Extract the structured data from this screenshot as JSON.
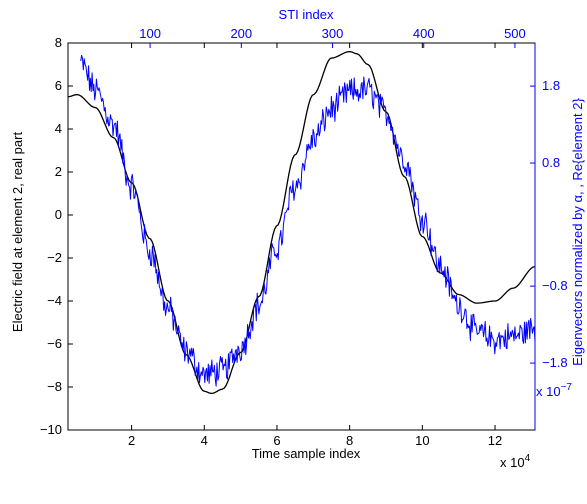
{
  "chart_data": {
    "type": "line",
    "xlabel": "Time sample index",
    "x_exponent_label": "x 10",
    "x_exponent_power": "4",
    "xlim": [
      0.25,
      13.1
    ],
    "xticks": [
      2,
      4,
      6,
      8,
      10,
      12
    ],
    "xtick_labels": [
      "2",
      "4",
      "6",
      "8",
      "10",
      "12"
    ],
    "ylabel": "Electric field at element 2, real part",
    "ylim": [
      -10,
      8
    ],
    "yticks": [
      8,
      6,
      4,
      2,
      0,
      -2,
      -4,
      -6,
      -8,
      -10
    ],
    "ytick_labels": [
      "8",
      "6",
      "4",
      "2",
      "0",
      "−2",
      "−4",
      "−6",
      "−8",
      "−10"
    ],
    "top_xlabel": "STI index",
    "top_xlim": [
      10,
      522
    ],
    "top_xticks": [
      100,
      200,
      300,
      400,
      500
    ],
    "top_xtick_labels": [
      "100",
      "200",
      "300",
      "400",
      "500"
    ],
    "right_ylabel": "Eigenvectors normalized by α, , Re{element 2}",
    "right_exponent_label": "x 10",
    "right_exponent_power": "−7",
    "right_ylim": [
      -2.67,
      2.36
    ],
    "right_yticks": [
      1.8,
      0.8,
      -0.8,
      -1.8
    ],
    "right_ytick_labels": [
      "1.8",
      "0.8",
      "−0.8",
      "−1.8"
    ],
    "colors": {
      "field": "#000000",
      "eigen": "#0000ff",
      "axis": "#000000",
      "right_axis": "#0000ff"
    },
    "series": [
      {
        "axis": "left",
        "color": "#000000",
        "x": [
          0.25,
          0.5,
          1.0,
          1.5,
          2.0,
          2.5,
          3.0,
          3.5,
          4.0,
          4.2,
          4.5,
          5.0,
          5.5,
          6.0,
          6.5,
          7.0,
          7.5,
          8.0,
          8.2,
          8.5,
          9.0,
          9.5,
          10.0,
          10.5,
          11.0,
          11.5,
          12.0,
          12.5,
          13.1
        ],
        "values": [
          5.5,
          5.6,
          5.0,
          3.6,
          1.5,
          -1.1,
          -4.0,
          -6.5,
          -8.2,
          -8.3,
          -8.1,
          -6.4,
          -3.8,
          -0.5,
          2.8,
          5.6,
          7.3,
          7.6,
          7.5,
          7.0,
          4.8,
          1.8,
          -1.0,
          -2.7,
          -3.7,
          -4.1,
          -4.0,
          -3.4,
          -2.4
        ]
      },
      {
        "axis": "right",
        "color": "#0000ff",
        "noisy": true,
        "x": [
          0.6,
          1.0,
          1.5,
          2.0,
          2.5,
          3.0,
          3.5,
          4.0,
          4.5,
          5.0,
          5.5,
          6.0,
          6.5,
          7.0,
          7.5,
          8.0,
          8.5,
          9.0,
          9.5,
          10.0,
          10.5,
          11.0,
          11.5,
          12.0,
          12.5,
          13.1
        ],
        "values": [
          2.1,
          1.75,
          1.3,
          0.5,
          -0.35,
          -1.1,
          -1.65,
          -1.95,
          -1.9,
          -1.6,
          -1.05,
          -0.3,
          0.5,
          1.1,
          1.5,
          1.72,
          1.75,
          1.45,
          0.85,
          0.1,
          -0.55,
          -1.05,
          -1.4,
          -1.5,
          -1.45,
          -1.35
        ]
      }
    ]
  }
}
